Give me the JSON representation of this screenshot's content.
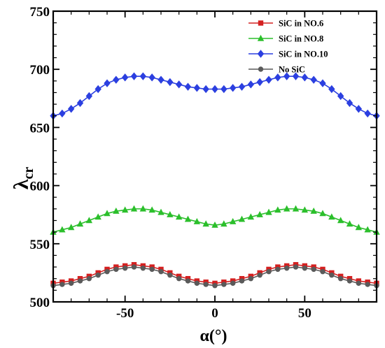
{
  "chart_data": {
    "type": "line",
    "title": "",
    "xlabel": "α(°)",
    "ylabel": "λcr",
    "ylabel_main": "λ",
    "ylabel_sub": "cr",
    "xlim": [
      -90,
      90
    ],
    "ylim": [
      500,
      750
    ],
    "xticks": [
      -50,
      0,
      50
    ],
    "yticks": [
      500,
      550,
      600,
      650,
      700,
      750
    ],
    "grid": false,
    "legend_position": "top-right",
    "x": [
      -90,
      -85,
      -80,
      -75,
      -70,
      -65,
      -60,
      -55,
      -50,
      -45,
      -40,
      -35,
      -30,
      -25,
      -20,
      -15,
      -10,
      -5,
      0,
      5,
      10,
      15,
      20,
      25,
      30,
      35,
      40,
      45,
      50,
      55,
      60,
      65,
      70,
      75,
      80,
      85,
      90
    ],
    "series": [
      {
        "name": "SiC in NO.6",
        "color": "#d42020",
        "marker": "square",
        "values": [
          516,
          517,
          518,
          520,
          522,
          525,
          528,
          530,
          531,
          532,
          531,
          530,
          528,
          525,
          522,
          520,
          518,
          517,
          516,
          517,
          518,
          520,
          522,
          525,
          528,
          530,
          531,
          532,
          531,
          530,
          528,
          525,
          522,
          520,
          518,
          517,
          516
        ]
      },
      {
        "name": "SiC in NO.8",
        "color": "#2bbf2b",
        "marker": "triangle",
        "values": [
          560,
          562,
          564,
          567,
          570,
          573,
          576,
          578,
          579,
          580,
          580,
          579,
          577,
          575,
          573,
          571,
          569,
          567,
          566,
          567,
          569,
          571,
          573,
          575,
          577,
          579,
          580,
          580,
          579,
          578,
          576,
          573,
          570,
          567,
          564,
          562,
          560
        ]
      },
      {
        "name": "SiC in NO.10",
        "color": "#2b3fe0",
        "marker": "diamond",
        "values": [
          660,
          662,
          666,
          671,
          677,
          683,
          688,
          691,
          693,
          694,
          694,
          693,
          691,
          689,
          687,
          685,
          684,
          683,
          683,
          683,
          684,
          685,
          687,
          689,
          691,
          693,
          694,
          694,
          693,
          691,
          688,
          683,
          677,
          671,
          666,
          662,
          660
        ]
      },
      {
        "name": "No SiC",
        "color": "#5a5a5a",
        "marker": "circle",
        "values": [
          514,
          515,
          516,
          518,
          520,
          523,
          526,
          528,
          529,
          530,
          529,
          528,
          526,
          523,
          520,
          518,
          516,
          515,
          514,
          515,
          516,
          518,
          520,
          523,
          526,
          528,
          529,
          530,
          529,
          528,
          526,
          523,
          520,
          518,
          516,
          515,
          514
        ]
      }
    ]
  }
}
